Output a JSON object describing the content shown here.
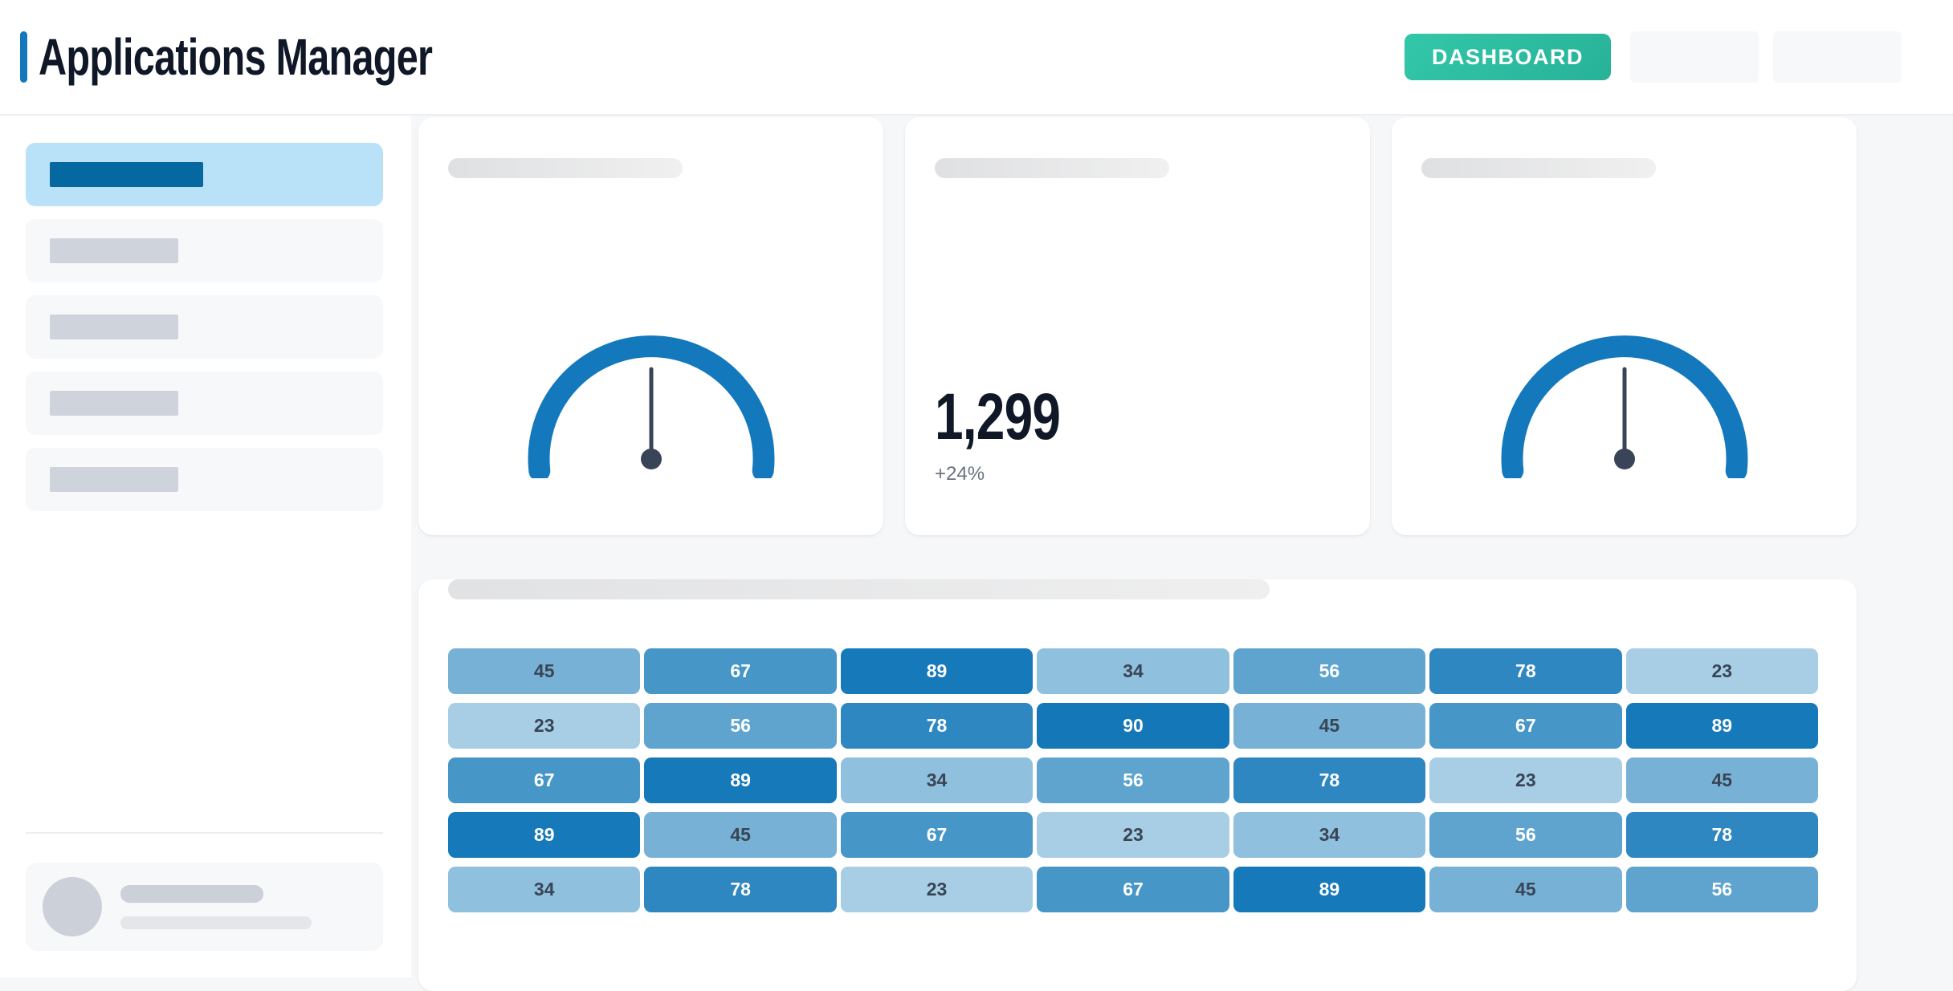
{
  "header": {
    "title": "Applications Manager",
    "nav_button_label": "DASHBOARD",
    "placeholder_button_count": 2
  },
  "sidebar": {
    "items": [
      {
        "active": true
      },
      {
        "active": false
      },
      {
        "active": false
      },
      {
        "active": false
      },
      {
        "active": false
      }
    ],
    "has_user_card": true
  },
  "stat_card": {
    "value": "1,299",
    "delta": "+24%"
  },
  "chart_data": [
    {
      "id": "gauge-left",
      "type": "gauge",
      "title": "",
      "needle_fraction": 0.5,
      "needle_angle_deg": 0,
      "arc_color": "#1478BD",
      "needle_color": "#3A4458"
    },
    {
      "id": "kpi-stat",
      "type": "table",
      "title": "",
      "value": "1,299",
      "delta": "+24%"
    },
    {
      "id": "gauge-right",
      "type": "gauge",
      "title": "",
      "needle_fraction": 0.5,
      "needle_angle_deg": 0,
      "arc_color": "#1478BD",
      "needle_color": "#3A4458"
    },
    {
      "id": "heatmap",
      "type": "heatmap",
      "title": "",
      "rows": 5,
      "cols": 7,
      "values": [
        [
          45,
          67,
          89,
          34,
          56,
          78,
          23
        ],
        [
          23,
          56,
          78,
          90,
          45,
          67,
          89
        ],
        [
          67,
          89,
          34,
          56,
          78,
          23,
          45
        ],
        [
          89,
          45,
          67,
          23,
          34,
          56,
          78
        ],
        [
          34,
          78,
          23,
          67,
          89,
          45,
          56
        ]
      ],
      "color_scale": {
        "min_value": 23,
        "max_value": 90,
        "min_color": "#A7CEE5",
        "max_color": "#1478B8"
      },
      "text_color_dark": "#394455",
      "text_color_light": "#FFFFFF",
      "light_text_threshold": 50,
      "legend": "none",
      "grid": false
    }
  ],
  "colors": {
    "page_background": "#F6F7F9",
    "surface": "#FFFFFF",
    "header_border": "#ECEEF1",
    "title_text": "#101828",
    "accent_blue": "#1478BD",
    "teal_button": "#2EC0A4",
    "sidebar_active_background": "#B9E2F8",
    "sidebar_active_bar": "#0568A1",
    "skeleton_gray": "#CFD3DB",
    "skeleton_light_gray": "#E4E6EA",
    "placeholder_surface": "#F7F8FA",
    "delta_text": "#6B7280"
  }
}
